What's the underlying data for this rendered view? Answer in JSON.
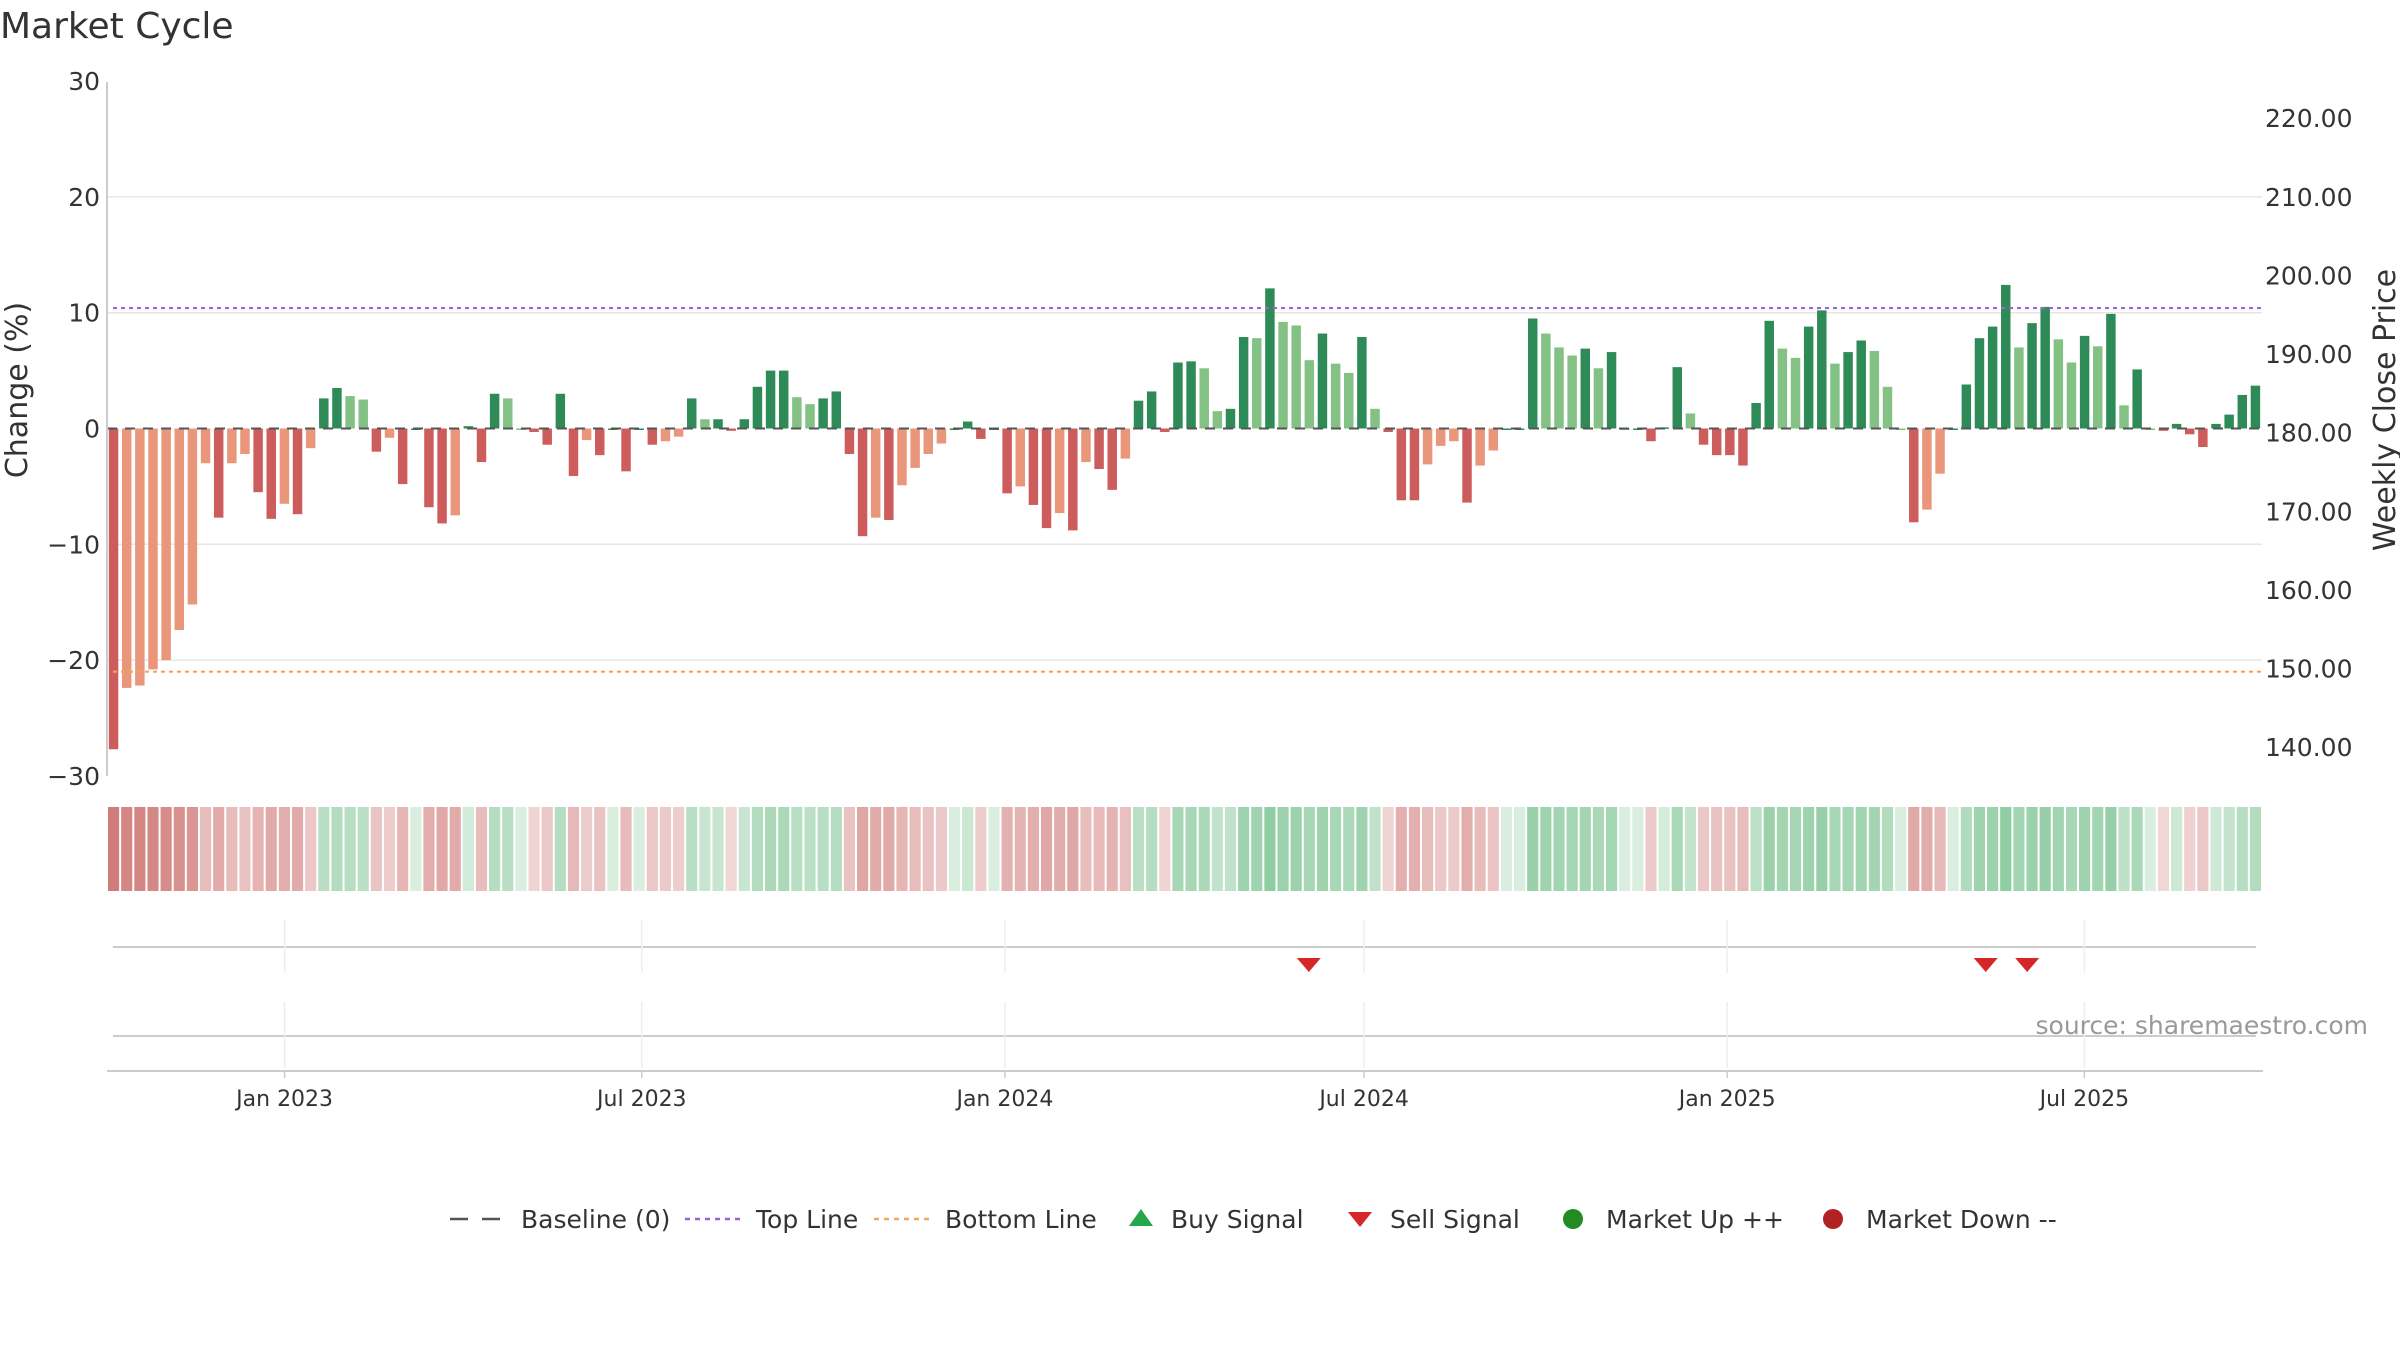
{
  "chart_data": {
    "type": "bar",
    "title": "Market Cycle",
    "ylabel_left": "Change (%)",
    "ylabel_right": "Weekly Close Price",
    "source": "source: sharemaestro.com",
    "y_left": {
      "min": -30,
      "max": 30,
      "ticks": [
        "30",
        "20",
        "10",
        "0",
        "−10",
        "−20",
        "−30"
      ],
      "tick_values": [
        30,
        20,
        10,
        0,
        -10,
        -20,
        -30
      ]
    },
    "y_right": {
      "min": 136.2,
      "max": 224.6,
      "ticks": [
        "220.00",
        "210.00",
        "200.00",
        "190.00",
        "180.00",
        "170.00",
        "160.00",
        "150.00",
        "140.00"
      ],
      "tick_values": [
        220,
        210,
        200,
        190,
        180,
        170,
        160,
        150,
        140
      ]
    },
    "x_start": "2022-10-03",
    "x_end": "2025-09-29",
    "x_ticks": [
      {
        "label": "Jan 2023",
        "date": "2023-01-01"
      },
      {
        "label": "Jul 2023",
        "date": "2023-07-01"
      },
      {
        "label": "Jan 2024",
        "date": "2024-01-01"
      },
      {
        "label": "Jul 2024",
        "date": "2024-07-01"
      },
      {
        "label": "Jan 2025",
        "date": "2025-01-01"
      },
      {
        "label": "Jul 2025",
        "date": "2025-07-01"
      }
    ],
    "top_line": 10.4,
    "bottom_line": -21,
    "grid": true,
    "legend_position": "bottom",
    "colors": {
      "strong_up": "#2e8b57",
      "weak_up": "#84c184",
      "strong_down": "#cd5c5c",
      "weak_down": "#e9967a",
      "top_line": "#9966cc",
      "bottom_line": "#f4a460",
      "baseline": "#555555",
      "buy": "#22a84a",
      "sell": "#d62728",
      "market_up": "#228b22",
      "market_down": "#b22222"
    },
    "series": [
      {
        "name": "Change (%)",
        "values": [
          -27.7,
          -22.4,
          -22.2,
          -20.8,
          -20.0,
          -17.4,
          -15.2,
          -3.0,
          -7.7,
          -3.0,
          -2.2,
          -5.5,
          -7.8,
          -6.5,
          -7.4,
          -1.7,
          2.6,
          3.5,
          2.8,
          2.5,
          -2.0,
          -0.8,
          -4.8,
          0,
          -6.8,
          -8.2,
          -7.5,
          0.2,
          -2.9,
          3.0,
          2.6,
          0,
          -0.3,
          -1.4,
          3.0,
          -4.1,
          -1.0,
          -2.3,
          0,
          -3.7,
          0,
          -1.4,
          -1.1,
          -0.7,
          2.6,
          0.8,
          0.8,
          -0.2,
          0.8,
          3.6,
          5.0,
          5.0,
          2.7,
          2.1,
          2.6,
          3.2,
          -2.2,
          -9.3,
          -7.7,
          -7.9,
          -4.9,
          -3.4,
          -2.2,
          -1.3,
          0,
          0.6,
          -0.9,
          0,
          -5.6,
          -5.0,
          -6.6,
          -8.6,
          -7.3,
          -8.8,
          -2.9,
          -3.5,
          -5.3,
          -2.6,
          2.4,
          3.2,
          -0.3,
          5.7,
          5.8,
          5.2,
          1.5,
          1.7,
          7.9,
          7.8,
          12.1,
          9.2,
          8.9,
          5.9,
          8.2,
          5.6,
          4.8,
          7.9,
          1.7,
          -0.3,
          -6.2,
          -6.2,
          -3.1,
          -1.5,
          -1.1,
          -6.4,
          -3.2,
          -1.9,
          0,
          0,
          9.5,
          8.2,
          7.0,
          6.3,
          6.9,
          5.2,
          6.6,
          0,
          0,
          -1.1,
          0.1,
          5.3,
          1.3,
          -1.4,
          -2.3,
          -2.3,
          -3.2,
          2.2,
          9.3,
          6.9,
          6.1,
          8.8,
          10.2,
          5.6,
          6.6,
          7.6,
          6.7,
          3.6,
          0,
          -8.1,
          -7.0,
          -3.9,
          0,
          3.8,
          7.8,
          8.8,
          12.4,
          7.0,
          9.1,
          10.5,
          7.7,
          5.7,
          8.0,
          7.1,
          9.9,
          2.0,
          5.1,
          0,
          -0.2,
          0.4,
          -0.5,
          -1.6,
          0.4,
          1.2,
          2.9,
          3.7
        ]
      }
    ],
    "sell_signals": [
      "2024-06-03",
      "2025-05-12",
      "2025-06-02"
    ],
    "buy_signals": [],
    "legend": [
      {
        "label": "Baseline (0)",
        "symbol": "dash",
        "color": "#555555"
      },
      {
        "label": "Top Line",
        "symbol": "dotted",
        "color": "#9966cc"
      },
      {
        "label": "Bottom Line",
        "symbol": "dotted",
        "color": "#f4a460"
      },
      {
        "label": "Buy Signal",
        "symbol": "triangle-up",
        "color": "#22a84a"
      },
      {
        "label": "Sell Signal",
        "symbol": "triangle-down",
        "color": "#d62728"
      },
      {
        "label": "Market Up ++",
        "symbol": "circle",
        "color": "#228b22"
      },
      {
        "label": "Market Down --",
        "symbol": "circle",
        "color": "#b22222"
      }
    ]
  }
}
